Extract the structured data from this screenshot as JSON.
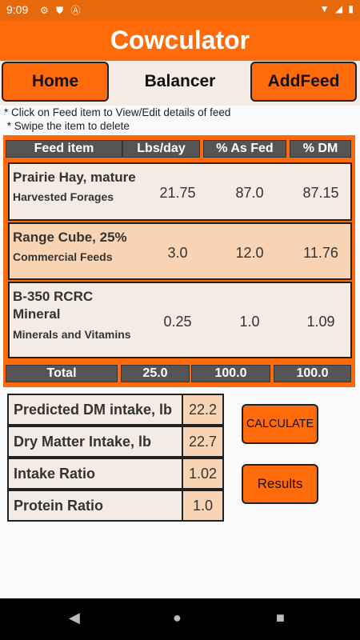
{
  "status": {
    "time": "9:09",
    "left_icons": [
      "gear-icon",
      "shield-icon",
      "a-icon"
    ],
    "right_icons": [
      "wifi-icon",
      "signal-icon",
      "battery-icon"
    ]
  },
  "app": {
    "title": "Cowculator",
    "accent": "#ff6a0a",
    "status_color": "#e8680c"
  },
  "nav": {
    "home_label": "Home",
    "balancer_label": "Balancer",
    "add_feed_label": "AddFeed"
  },
  "instructions": {
    "line1": "* Click on Feed item to View/Edit details of feed",
    "line2": " * Swipe the item to delete"
  },
  "table": {
    "headers": [
      "Feed item",
      "Lbs/day",
      "% As Fed",
      "% DM"
    ],
    "rows": [
      {
        "name": "Prairie Hay, mature",
        "category": "Harvested Forages",
        "lbs": "21.75",
        "as_fed": "87.0",
        "dm": "87.15"
      },
      {
        "name": "Range Cube, 25%",
        "category": "Commercial Feeds",
        "lbs": "3.0",
        "as_fed": "12.0",
        "dm": "11.76"
      },
      {
        "name": "B-350 RCRC Mineral",
        "category": "Minerals and Vitamins",
        "lbs": "0.25",
        "as_fed": "1.0",
        "dm": "1.09"
      }
    ],
    "total": {
      "label": "Total",
      "lbs": "25.0",
      "as_fed": "100.0",
      "dm": "100.0"
    }
  },
  "results": [
    {
      "label": "Predicted DM intake, lb",
      "value": "22.2"
    },
    {
      "label": "Dry Matter Intake, lb",
      "value": "22.7"
    },
    {
      "label": "Intake Ratio",
      "value": "1.02"
    },
    {
      "label": "Protein Ratio",
      "value": "1.0"
    }
  ],
  "buttons": {
    "calculate": "CALCULATE",
    "results": "Results"
  },
  "navbar": {
    "back": "◀",
    "home": "●",
    "recents": "■"
  }
}
